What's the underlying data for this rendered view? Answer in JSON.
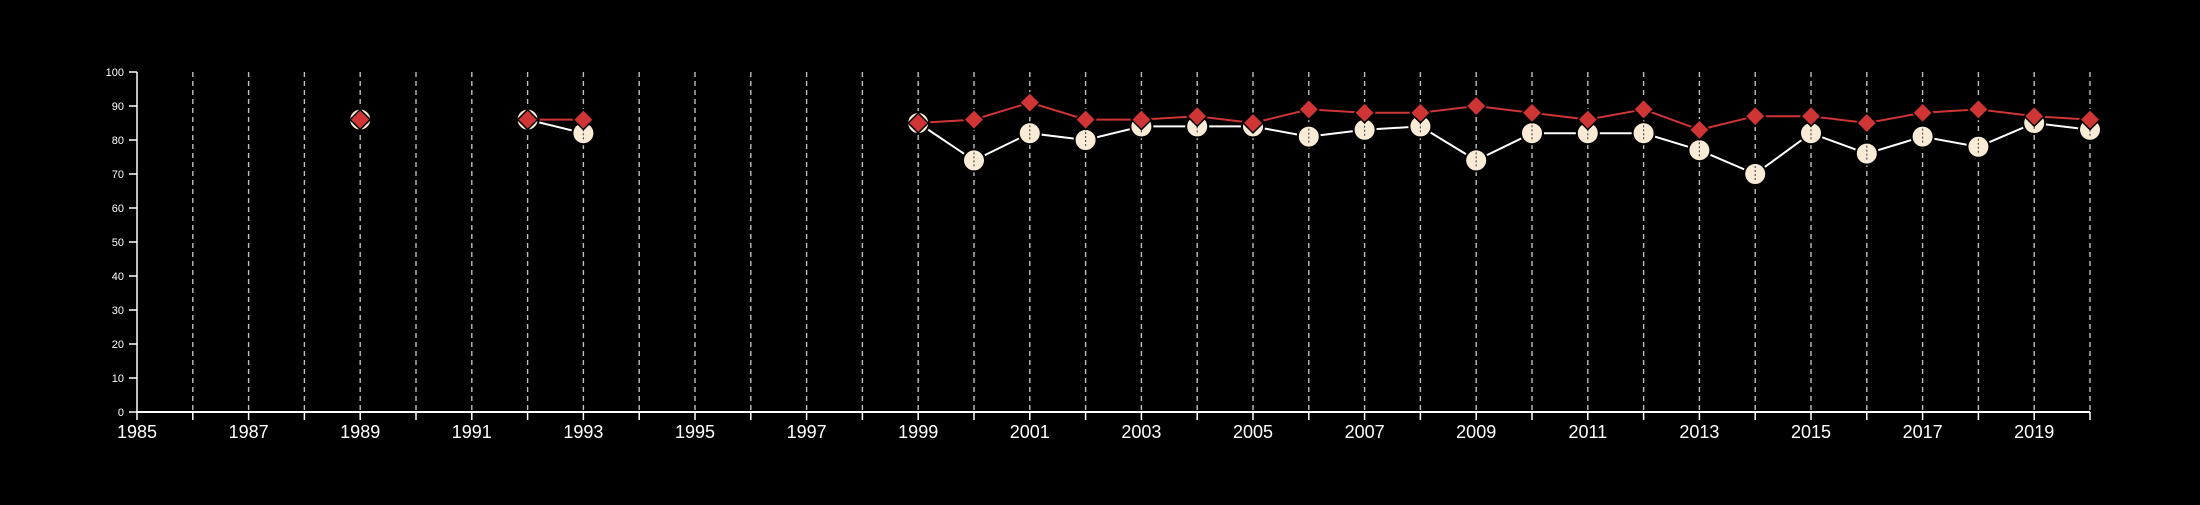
{
  "chart_data": {
    "type": "line",
    "title": "",
    "xlabel": "",
    "ylabel": "",
    "xlim": [
      1985,
      2020
    ],
    "ylim": [
      0,
      100
    ],
    "grid": "vertical-dashed",
    "yticks": [
      0,
      10,
      20,
      30,
      40,
      50,
      60,
      70,
      80,
      90,
      100
    ],
    "xtick_labels": [
      1985,
      1987,
      1989,
      1991,
      1993,
      1995,
      1997,
      1999,
      2001,
      2003,
      2005,
      2007,
      2009,
      2011,
      2013,
      2015,
      2017,
      2019
    ],
    "x": [
      1989,
      1992,
      1993,
      1999,
      2000,
      2001,
      2002,
      2003,
      2004,
      2005,
      2006,
      2007,
      2008,
      2009,
      2010,
      2011,
      2012,
      2013,
      2014,
      2015,
      2016,
      2017,
      2018,
      2019,
      2020
    ],
    "series": [
      {
        "color": "#faebd7",
        "marker": "circle",
        "values": [
          86,
          86,
          82,
          85,
          74,
          82,
          80,
          84,
          84,
          84,
          81,
          83,
          84,
          74,
          82,
          82,
          82,
          77,
          70,
          82,
          76,
          81,
          78,
          85,
          83
        ]
      },
      {
        "color": "#d03535",
        "marker": "diamond",
        "values": [
          86,
          86,
          86,
          85,
          86,
          91,
          86,
          86,
          87,
          85,
          89,
          88,
          88,
          90,
          88,
          86,
          89,
          83,
          87,
          87,
          85,
          88,
          89,
          87,
          86
        ]
      }
    ],
    "gaps_after": [
      1989,
      1993
    ]
  }
}
